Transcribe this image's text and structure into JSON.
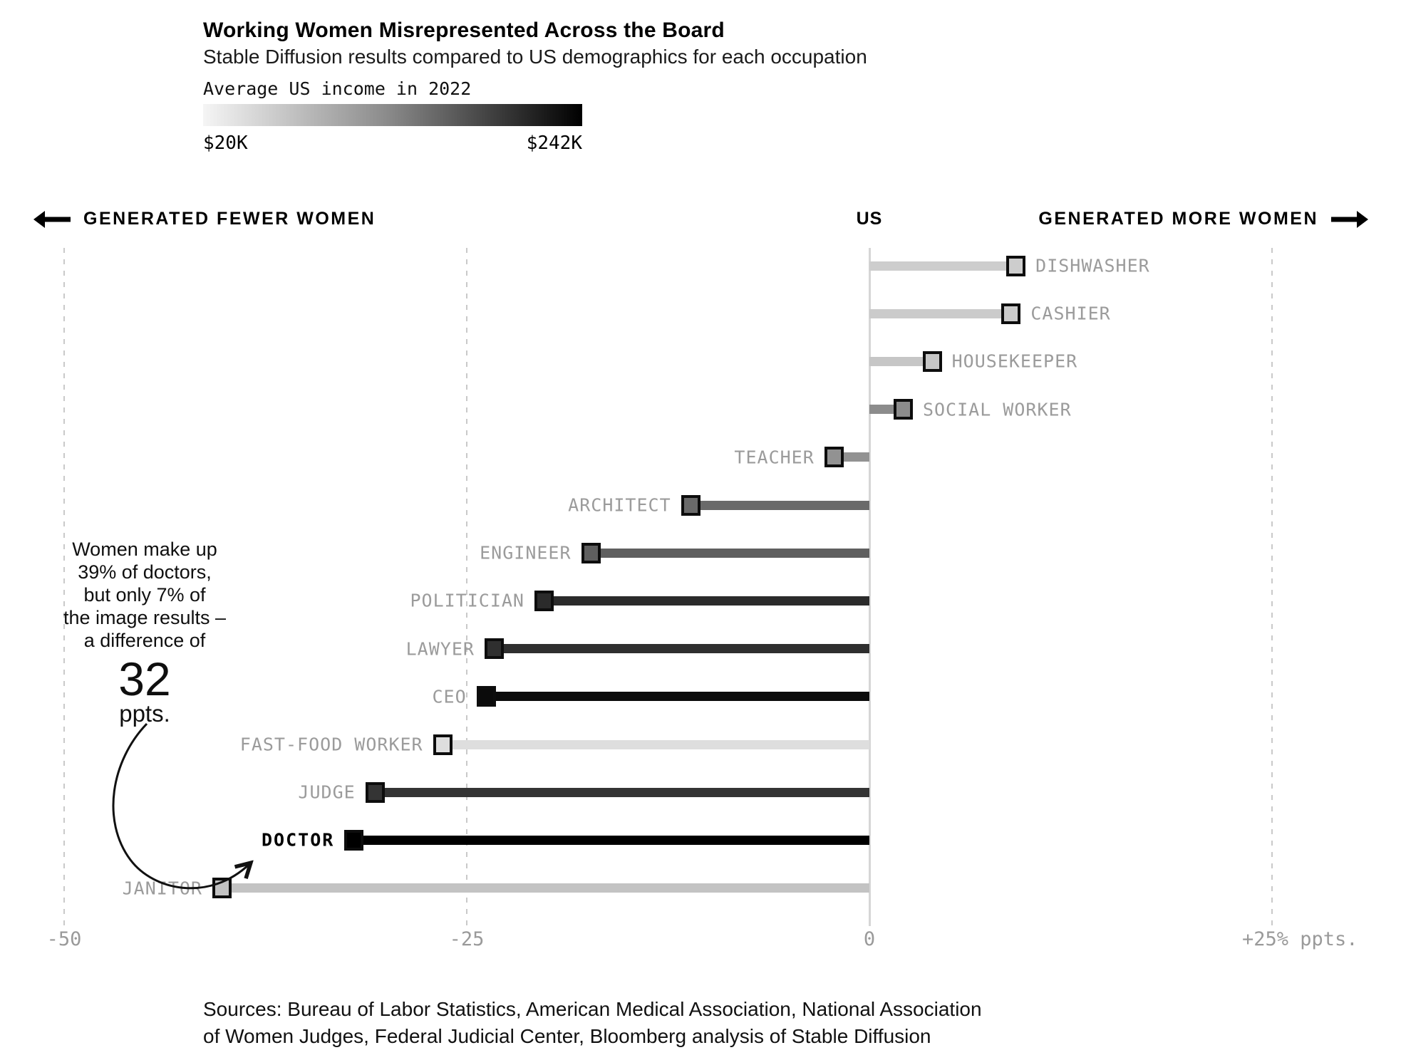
{
  "header": {
    "title": "Working Women Misrepresented Across the Board",
    "subtitle": "Stable Diffusion results compared to US demographics for each occupation"
  },
  "legend": {
    "title": "Average US income in 2022",
    "min_label": "$20K",
    "max_label": "$242K",
    "gradient_from": "#f5f5f5",
    "gradient_mid": "#8c8c8c",
    "gradient_to": "#000000"
  },
  "direction_header": {
    "left_label": "GENERATED FEWER WOMEN",
    "center_label": "US",
    "right_label": "GENERATED MORE WOMEN"
  },
  "chart_data": {
    "type": "bar",
    "subtype": "horizontal-lollipop",
    "x_unit": "ppts.",
    "xlim": [
      -50,
      33
    ],
    "baseline_value": 0,
    "baseline_label": "US",
    "grid": "dashed-vertical",
    "x_ticks": [
      {
        "value": -50,
        "label": "-50"
      },
      {
        "value": -25,
        "label": "-25"
      },
      {
        "value": 0,
        "label": "0"
      },
      {
        "value": 25,
        "label": "+25% ppts."
      }
    ],
    "color_encoding": "grayscale shade = average US income in 2022 ($20K light to $242K black)",
    "rows": [
      {
        "label": "DISHWASHER",
        "value": 9.1,
        "shade": "#cdcdcd",
        "emphasis": false
      },
      {
        "label": "CASHIER",
        "value": 8.8,
        "shade": "#cbcbcb",
        "emphasis": false
      },
      {
        "label": "HOUSEKEEPER",
        "value": 3.9,
        "shade": "#c6c6c6",
        "emphasis": false
      },
      {
        "label": "SOCIAL WORKER",
        "value": 2.1,
        "shade": "#8c8c8c",
        "emphasis": false
      },
      {
        "label": "TEACHER",
        "value": -2.2,
        "shade": "#929292",
        "emphasis": false
      },
      {
        "label": "ARCHITECT",
        "value": -11.1,
        "shade": "#6a6a6a",
        "emphasis": false
      },
      {
        "label": "ENGINEER",
        "value": -17.3,
        "shade": "#5f5f5f",
        "emphasis": false
      },
      {
        "label": "POLITICIAN",
        "value": -20.2,
        "shade": "#2b2b2b",
        "emphasis": false
      },
      {
        "label": "LAWYER",
        "value": -23.3,
        "shade": "#2f2f2f",
        "emphasis": false
      },
      {
        "label": "CEO",
        "value": -23.8,
        "shade": "#0b0b0b",
        "emphasis": false
      },
      {
        "label": "FAST-FOOD WORKER",
        "value": -26.5,
        "shade": "#dedede",
        "emphasis": false
      },
      {
        "label": "JUDGE",
        "value": -30.7,
        "shade": "#343434",
        "emphasis": false
      },
      {
        "label": "DOCTOR",
        "value": -32.0,
        "shade": "#000000",
        "emphasis": true
      },
      {
        "label": "JANITOR",
        "value": -40.2,
        "shade": "#c3c3c3",
        "emphasis": false
      }
    ]
  },
  "annotation": {
    "lines": [
      "Women make up",
      "39% of doctors,",
      "but only 7% of",
      "the image results –",
      "a difference of"
    ],
    "big_number": "32",
    "suffix": "ppts.",
    "points_to": "DOCTOR"
  },
  "sources": {
    "line1": "Sources: Bureau of Labor Statistics, American Medical Association, National Association",
    "line2": "of Women Judges, Federal Judicial Center, Bloomberg analysis of Stable Diffusion"
  }
}
